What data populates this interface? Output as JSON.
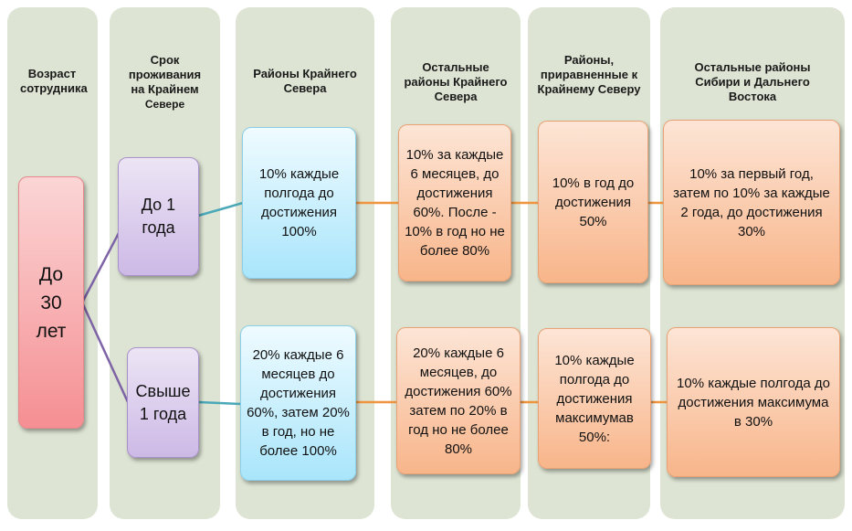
{
  "headers": {
    "age": "Возраст сотрудника",
    "residence_line1": "Срок проживания",
    "residence_line2": "на  Крайнем",
    "residence_line3": "Севере",
    "far_north": "Районы Крайнего Севера",
    "other_far_north": "Остальные районы Крайнего Севера",
    "equated": "Районы, приравненные к Крайнему Северу",
    "siberia": "Остальные районы Сибири и Дальнего Востока"
  },
  "age_box": {
    "label": "До 30 лет"
  },
  "durations": [
    {
      "label": "До 1 года"
    },
    {
      "label": "Свыше 1 года"
    }
  ],
  "rows": [
    {
      "far_north": "10% каждые полгода до достижения 100%",
      "other_far_north": "10% за каждые 6 месяцев, до достижения 60%. После  - 10% в год  но не более 80%",
      "equated": "10% в год до достижения 50%",
      "siberia": "10% за  первый год, затем по 10% за каждые 2 года, до достижения 30%"
    },
    {
      "far_north": "20% каждые 6 месяцев до достижения 60%, затем 20% в год, но не более 100%",
      "other_far_north": "20% каждые 6 месяцев, до достижения 60% затем по 20% в год но не более 80%",
      "equated": "10% каждые полгода до достижения максимумав 50%:",
      "siberia": "10% каждые полгода до достижения максимума в 30%"
    }
  ],
  "colors": {
    "column_bg": "#dde4d3",
    "age_box": "#f58f93",
    "duration_box": "#cdb9e6",
    "far_north_box": "#a9e5fb",
    "other_box": "#f8b58a",
    "connector_purple": "#7e63a6",
    "connector_teal": "#4aa8b8",
    "connector_orange": "#f0953f"
  }
}
